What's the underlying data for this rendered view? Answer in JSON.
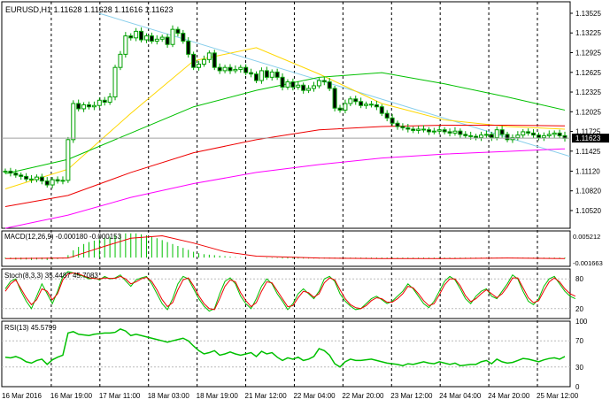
{
  "chart_data": [
    {
      "type": "candlestick",
      "panel": "main",
      "title": "EURUSD,H1  1.11628 1.11628 1.11616 1.11623",
      "current_price": 1.11623,
      "current_price_label": "1.11623",
      "ylim": [
        1.1025,
        1.137
      ],
      "yticks": [
        "1.13525",
        "1.13225",
        "1.12925",
        "1.12625",
        "1.12325",
        "1.12025",
        "1.11725",
        "1.11425",
        "1.11120",
        "1.10820",
        "1.10520"
      ],
      "ytick_values": [
        1.13525,
        1.13225,
        1.12925,
        1.12625,
        1.12325,
        1.12025,
        1.11725,
        1.11425,
        1.1112,
        1.1082,
        1.1052
      ],
      "xlabels": [
        "16 Mar 2016",
        "16 Mar 19:00",
        "17 Mar 11:00",
        "18 Mar 03:00",
        "18 Mar 19:00",
        "21 Mar 12:00",
        "22 Mar 04:00",
        "22 Mar 20:00",
        "23 Mar 12:00",
        "24 Mar 04:00",
        "24 Mar 20:00",
        "25 Mar 12:00"
      ],
      "closes": [
        1.1112,
        1.1109,
        1.1106,
        1.1104,
        1.11,
        1.1099,
        1.1103,
        1.1097,
        1.1091,
        1.1099,
        1.1097,
        1.1098,
        1.116,
        1.1215,
        1.1207,
        1.1213,
        1.121,
        1.1212,
        1.122,
        1.1217,
        1.1225,
        1.127,
        1.129,
        1.1318,
        1.1315,
        1.1325,
        1.1312,
        1.1318,
        1.131,
        1.1313,
        1.1316,
        1.1305,
        1.1328,
        1.1322,
        1.131,
        1.129,
        1.127,
        1.1275,
        1.1282,
        1.1292,
        1.127,
        1.1265,
        1.127,
        1.1265,
        1.1267,
        1.127,
        1.1262,
        1.126,
        1.125,
        1.1265,
        1.1255,
        1.1263,
        1.1255,
        1.124,
        1.1248,
        1.124,
        1.1243,
        1.1235,
        1.1238,
        1.1242,
        1.125,
        1.1248,
        1.1238,
        1.1208,
        1.1205,
        1.1215,
        1.1222,
        1.1218,
        1.1212,
        1.1214,
        1.1213,
        1.121,
        1.12,
        1.1193,
        1.1185,
        1.118,
        1.1178,
        1.1176,
        1.1174,
        1.1176,
        1.1175,
        1.1172,
        1.1173,
        1.1175,
        1.1172,
        1.117,
        1.1173,
        1.1168,
        1.1166,
        1.1165,
        1.1163,
        1.1167,
        1.1168,
        1.1163,
        1.1175,
        1.1168,
        1.116,
        1.1163,
        1.1167,
        1.1172,
        1.117,
        1.1167,
        1.1163,
        1.1166,
        1.1168,
        1.117,
        1.1166,
        1.1162
      ],
      "overlays": [
        {
          "name": "trendline",
          "color": "#87ceeb",
          "from_date": "17 Mar 11:00",
          "from_value": 1.13525,
          "to_date": "25 Mar 12:00",
          "to_value": 1.115
        },
        {
          "name": "ma-yellow",
          "color": "#ffd700",
          "x": [
            0,
            12,
            24,
            36,
            48,
            60,
            72,
            84,
            96,
            107
          ],
          "values": [
            1.1085,
            1.1115,
            1.12,
            1.128,
            1.13,
            1.126,
            1.1215,
            1.119,
            1.118,
            1.1176
          ]
        },
        {
          "name": "ma-green",
          "color": "#00c000",
          "x": [
            0,
            12,
            24,
            36,
            48,
            60,
            72,
            84,
            96,
            107
          ],
          "values": [
            1.1108,
            1.113,
            1.117,
            1.121,
            1.1235,
            1.1255,
            1.1262,
            1.1245,
            1.1225,
            1.1205
          ]
        },
        {
          "name": "ma-red",
          "color": "#ee0000",
          "x": [
            0,
            12,
            24,
            36,
            48,
            60,
            72,
            84,
            96,
            107
          ],
          "values": [
            1.1058,
            1.1075,
            1.111,
            1.114,
            1.116,
            1.1175,
            1.118,
            1.1182,
            1.1182,
            1.1181
          ]
        },
        {
          "name": "ma-magenta",
          "color": "#ff00ff",
          "x": [
            0,
            12,
            24,
            36,
            48,
            60,
            72,
            84,
            96,
            107
          ],
          "values": [
            1.1025,
            1.1045,
            1.1072,
            1.1093,
            1.111,
            1.1122,
            1.1132,
            1.1138,
            1.1142,
            1.1146
          ]
        }
      ]
    },
    {
      "type": "bar",
      "panel": "macd",
      "title": "MACD(12,26,9) -0.000180 -0.000153",
      "yticks": [
        "0.005212",
        "-0.001663"
      ],
      "ylim": [
        -0.0018,
        0.0055
      ],
      "histogram": [
        -0.0002,
        -0.0003,
        -0.0004,
        -0.0004,
        -0.0004,
        -0.0005,
        -0.0004,
        -0.0004,
        -0.0005,
        -0.0004,
        -0.0003,
        -0.0002,
        0.0005,
        0.0015,
        0.0022,
        0.0028,
        0.0032,
        0.0035,
        0.0038,
        0.0041,
        0.0043,
        0.0046,
        0.0048,
        0.005,
        0.005,
        0.005,
        0.0048,
        0.0046,
        0.0043,
        0.004,
        0.0036,
        0.0032,
        0.0028,
        0.0024,
        0.002,
        0.0016,
        0.0012,
        0.0009,
        0.0007,
        0.0006,
        0.0005,
        0.0004,
        0.0003,
        0.0002,
        0.0001,
        0.0001,
        0.0,
        0.0,
        0.0,
        0.0,
        -0.0001,
        -0.0001,
        -0.0001,
        -0.0002,
        -0.0002,
        -0.0002,
        -0.0002,
        -0.0002,
        -0.0002,
        -0.0002,
        -0.0002,
        -0.0002,
        -0.0002,
        -0.0002,
        -0.0002,
        -0.0002,
        -0.0002,
        -0.0002,
        -0.0002,
        -0.0002,
        -0.0002,
        -0.0002,
        -0.0002,
        -0.0002,
        -0.0002,
        -0.0002,
        -0.0002,
        -0.0002,
        -0.0002,
        -0.0002,
        -0.0002,
        -0.0002,
        -0.0002,
        -0.0002,
        -0.0002,
        -0.0002,
        -0.0002,
        -0.0002,
        -0.0002,
        -0.0002,
        -0.0002,
        -0.0001,
        -0.0001,
        -0.0001,
        -0.0001,
        -0.0001,
        -0.0001,
        -0.0001,
        -0.0001,
        -0.0001,
        -0.0001,
        -0.0001,
        -0.0001,
        -0.0001,
        -0.0002,
        -0.0002,
        -0.0002,
        -0.0002
      ],
      "signal_x": [
        0,
        12,
        18,
        24,
        30,
        36,
        42,
        48,
        60,
        72,
        84,
        96,
        107
      ],
      "signal": [
        -0.0002,
        -0.0001,
        0.002,
        0.004,
        0.0045,
        0.003,
        0.0012,
        0.0003,
        -0.0001,
        -0.0002,
        -0.0002,
        -0.0001,
        -0.0002
      ]
    },
    {
      "type": "line",
      "panel": "stochastic",
      "title": "Stoch(8,3,3) 35.4487 45.7083",
      "yticks": [
        "80",
        "20"
      ],
      "ylim": [
        0,
        100
      ],
      "series": [
        {
          "color": "#00c000",
          "values": [
            60,
            75,
            80,
            55,
            35,
            20,
            45,
            70,
            50,
            30,
            55,
            85,
            95,
            92,
            88,
            85,
            80,
            82,
            78,
            85,
            80,
            82,
            88,
            76,
            65,
            78,
            82,
            85,
            70,
            50,
            30,
            18,
            40,
            70,
            85,
            80,
            60,
            40,
            25,
            15,
            20,
            50,
            75,
            82,
            70,
            45,
            30,
            20,
            40,
            65,
            80,
            70,
            50,
            35,
            18,
            30,
            50,
            60,
            50,
            40,
            55,
            80,
            85,
            75,
            50,
            35,
            25,
            18,
            20,
            30,
            40,
            45,
            38,
            30,
            35,
            45,
            55,
            70,
            60,
            45,
            30,
            22,
            35,
            55,
            75,
            85,
            78,
            60,
            40,
            30,
            45,
            55,
            60,
            45,
            40,
            55,
            70,
            88,
            80,
            55,
            35,
            28,
            40,
            65,
            80,
            85,
            70,
            55,
            45,
            40
          ]
        },
        {
          "color": "#ee0000",
          "values": [
            55,
            70,
            78,
            60,
            42,
            28,
            38,
            60,
            55,
            38,
            50,
            78,
            90,
            92,
            90,
            86,
            82,
            81,
            80,
            82,
            81,
            81,
            85,
            80,
            70,
            74,
            80,
            83,
            75,
            58,
            38,
            24,
            32,
            58,
            78,
            82,
            66,
            46,
            30,
            20,
            18,
            40,
            65,
            78,
            74,
            52,
            36,
            24,
            32,
            55,
            74,
            72,
            56,
            40,
            24,
            26,
            42,
            55,
            52,
            43,
            50,
            72,
            82,
            78,
            58,
            40,
            28,
            22,
            20,
            26,
            36,
            42,
            40,
            33,
            33,
            40,
            50,
            65,
            62,
            50,
            36,
            26,
            30,
            48,
            68,
            80,
            80,
            66,
            46,
            34,
            40,
            50,
            58,
            50,
            42,
            50,
            64,
            82,
            82,
            62,
            42,
            32,
            36,
            56,
            74,
            82,
            74,
            60,
            50,
            45
          ]
        }
      ]
    },
    {
      "type": "line",
      "panel": "rsi",
      "title": "RSI(13) 45.5799",
      "yticks": [
        "100",
        "70",
        "30",
        "0"
      ],
      "ylim": [
        0,
        100
      ],
      "series": [
        {
          "color": "#00c000",
          "values": [
            45,
            44,
            46,
            43,
            38,
            36,
            40,
            42,
            34,
            41,
            45,
            48,
            82,
            84,
            80,
            79,
            78,
            80,
            81,
            82,
            82,
            83,
            88,
            85,
            78,
            80,
            78,
            76,
            74,
            72,
            70,
            68,
            70,
            72,
            74,
            70,
            62,
            55,
            50,
            52,
            55,
            48,
            50,
            53,
            50,
            48,
            50,
            52,
            46,
            54,
            50,
            52,
            45,
            40,
            44,
            42,
            45,
            40,
            42,
            46,
            58,
            55,
            48,
            35,
            30,
            38,
            42,
            40,
            40,
            41,
            42,
            40,
            38,
            36,
            35,
            34,
            32,
            35,
            34,
            36,
            38,
            36,
            35,
            38,
            36,
            34,
            36,
            32,
            33,
            34,
            34,
            38,
            40,
            35,
            42,
            38,
            36,
            37,
            40,
            43,
            42,
            40,
            38,
            41,
            43,
            44,
            42,
            46
          ]
        }
      ]
    }
  ]
}
